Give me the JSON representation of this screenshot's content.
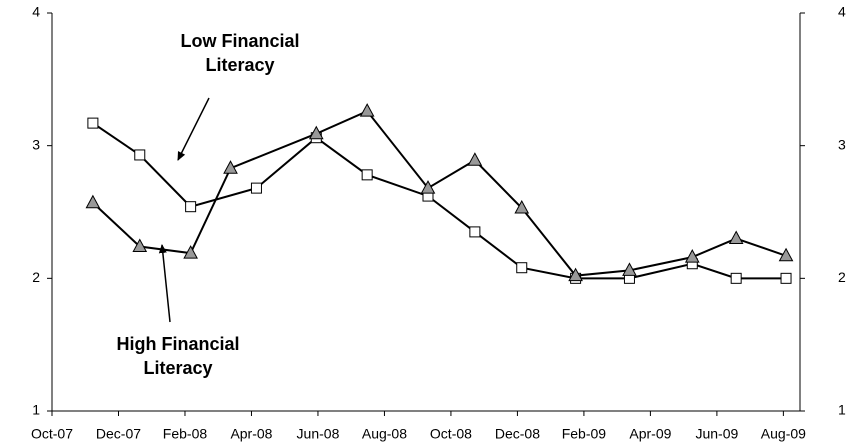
{
  "chart_data": {
    "type": "line",
    "series": [
      {
        "name": "Low Financial Literacy",
        "color": "#000000",
        "marker": "square",
        "marker_fill": "#ffffff",
        "x": [
          1.23,
          2.64,
          4.17,
          6.15,
          7.95,
          9.48,
          11.31,
          12.72,
          14.13,
          15.75,
          17.37,
          19.26,
          20.58,
          22.08
        ],
        "values": [
          3.17,
          2.93,
          2.54,
          2.68,
          3.06,
          2.78,
          2.62,
          2.35,
          2.08,
          2.0,
          2.0,
          2.11,
          2.0,
          2.0
        ]
      },
      {
        "name": "High Financial Literacy",
        "color": "#000000",
        "marker": "triangle",
        "marker_fill": "#999999",
        "x": [
          1.23,
          2.64,
          4.17,
          5.37,
          7.95,
          9.48,
          11.31,
          12.72,
          14.13,
          15.75,
          17.37,
          19.26,
          20.58,
          22.08
        ],
        "values": [
          2.57,
          2.24,
          2.19,
          2.83,
          3.09,
          3.26,
          2.68,
          2.89,
          2.53,
          2.02,
          2.06,
          2.16,
          2.3,
          2.17
        ]
      }
    ],
    "xlim": [
      0,
      22.5
    ],
    "xticks": [
      {
        "value": 0,
        "label": "Oct-07"
      },
      {
        "value": 2,
        "label": "Dec-07"
      },
      {
        "value": 4,
        "label": "Feb-08"
      },
      {
        "value": 6,
        "label": "Apr-08"
      },
      {
        "value": 8,
        "label": "Jun-08"
      },
      {
        "value": 10,
        "label": "Aug-08"
      },
      {
        "value": 12,
        "label": "Oct-08"
      },
      {
        "value": 14,
        "label": "Dec-08"
      },
      {
        "value": 16,
        "label": "Feb-09"
      },
      {
        "value": 18,
        "label": "Apr-09"
      },
      {
        "value": 20,
        "label": "Jun-09"
      },
      {
        "value": 22,
        "label": "Aug-09"
      }
    ],
    "ylim": [
      1,
      4
    ],
    "yticks": [
      1,
      2,
      3,
      4
    ],
    "y2lim": [
      1,
      4
    ],
    "y2ticks": [
      1,
      2,
      3,
      4
    ],
    "annotations": [
      {
        "lines": [
          "Low Financial",
          "Literacy"
        ]
      },
      {
        "lines": [
          "High Financial",
          "Literacy"
        ]
      }
    ]
  }
}
